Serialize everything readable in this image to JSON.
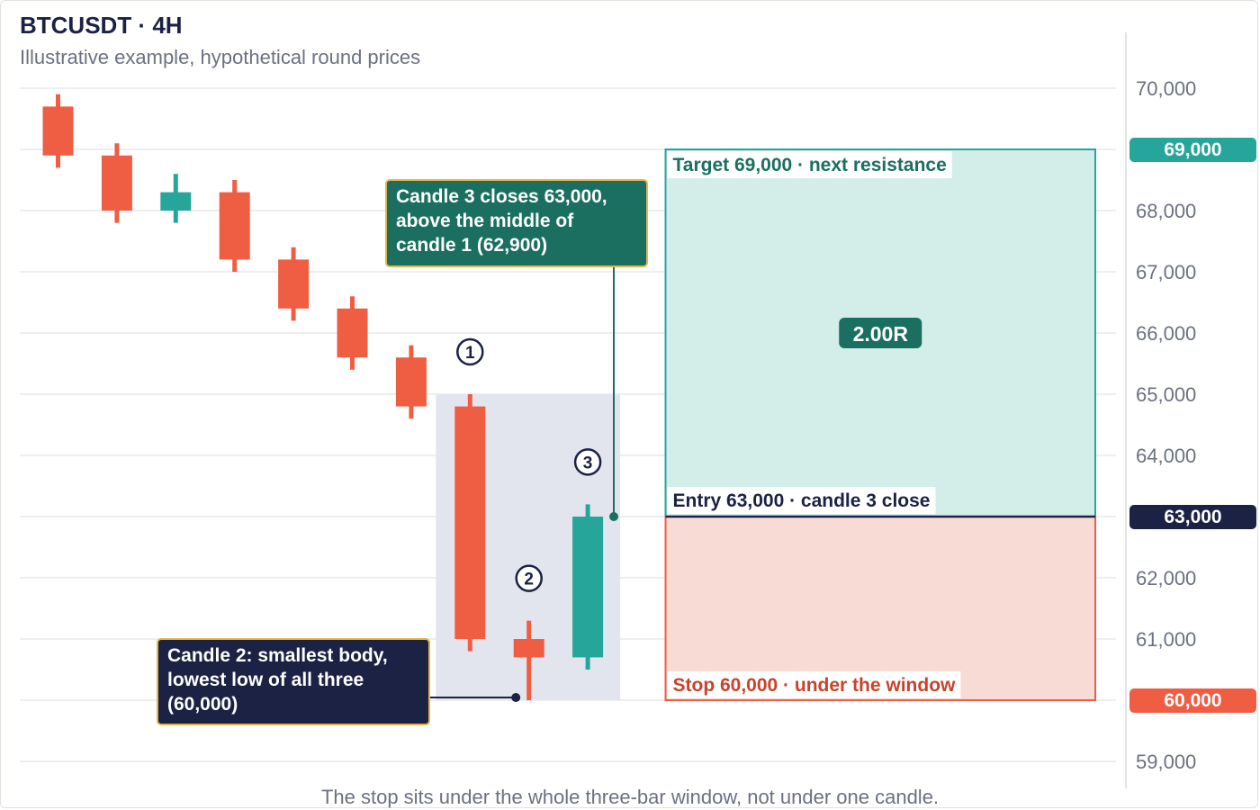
{
  "header": {
    "title": "BTCUSDT · 4H",
    "subtitle": "Illustrative example, hypothetical round prices"
  },
  "footnote": "The stop sits under the whole three-bar window, not under one candle.",
  "colors": {
    "bull": "#26a69a",
    "bear": "#ef5d43",
    "navy": "#1b2244",
    "dark_green": "#1a6f60",
    "window": "#e3e5ee",
    "target_fill": "#d3ede9",
    "target_border": "#26a69a",
    "stop_fill": "#f9dbd5",
    "stop_border": "#ef5d43",
    "note_border": "#e3b64b"
  },
  "chart_data": {
    "type": "candlestick",
    "title": "BTCUSDT · 4H",
    "subtitle": "Illustrative example, hypothetical round prices",
    "ylim": [
      58800,
      70900
    ],
    "y_ticks": [
      "59,000",
      "61,000",
      "62,000",
      "64,000",
      "65,000",
      "66,000",
      "67,000",
      "68,000",
      "70,000"
    ],
    "y_tick_values": [
      59000,
      61000,
      62000,
      64000,
      65000,
      66000,
      67000,
      68000,
      70000
    ],
    "candles": [
      {
        "o": 69700,
        "h": 69900,
        "l": 68700,
        "c": 68900
      },
      {
        "o": 68900,
        "h": 69100,
        "l": 67800,
        "c": 68000
      },
      {
        "o": 68000,
        "h": 68600,
        "l": 67800,
        "c": 68300
      },
      {
        "o": 68300,
        "h": 68500,
        "l": 67000,
        "c": 67200
      },
      {
        "o": 67200,
        "h": 67400,
        "l": 66200,
        "c": 66400
      },
      {
        "o": 66400,
        "h": 66600,
        "l": 65400,
        "c": 65600
      },
      {
        "o": 65600,
        "h": 65800,
        "l": 64600,
        "c": 64800
      },
      {
        "o": 64800,
        "h": 65000,
        "l": 60800,
        "c": 61000
      },
      {
        "o": 61000,
        "h": 61300,
        "l": 60000,
        "c": 60700
      },
      {
        "o": 60700,
        "h": 63200,
        "l": 60500,
        "c": 63000
      }
    ],
    "candle_markers": [
      {
        "candle": 7,
        "label": "①"
      },
      {
        "candle": 8,
        "label": "②"
      },
      {
        "candle": 9,
        "label": "③"
      }
    ],
    "window": {
      "from_candle": 7,
      "to_candle": 9,
      "high": 65000,
      "low": 60000
    },
    "position": {
      "entry": 63000,
      "stop": 60000,
      "target": 69000,
      "risk_reward": "2.00R",
      "target_label": "Target 69,000 · next resistance",
      "entry_label": "Entry 63,000 · candle 3 close",
      "stop_label": "Stop 60,000 · under the window"
    },
    "price_tags": [
      {
        "value": 69000,
        "label": "69,000",
        "color": "#26a69a"
      },
      {
        "value": 63000,
        "label": "63,000",
        "color": "#1b2244"
      },
      {
        "value": 60000,
        "label": "60,000",
        "color": "#ef5d43"
      }
    ],
    "annotations": [
      {
        "lines": [
          "Candle 3 closes 63,000,",
          "above the middle of",
          "candle 1 (62,900)"
        ],
        "anchor_candle": 9,
        "anchor_price": 63000,
        "style": "dark_green"
      },
      {
        "lines": [
          "Candle 2: smallest body,",
          "lowest low of all three",
          "(60,000)"
        ],
        "anchor_candle": 8,
        "anchor_price": 60000,
        "style": "navy"
      }
    ]
  }
}
